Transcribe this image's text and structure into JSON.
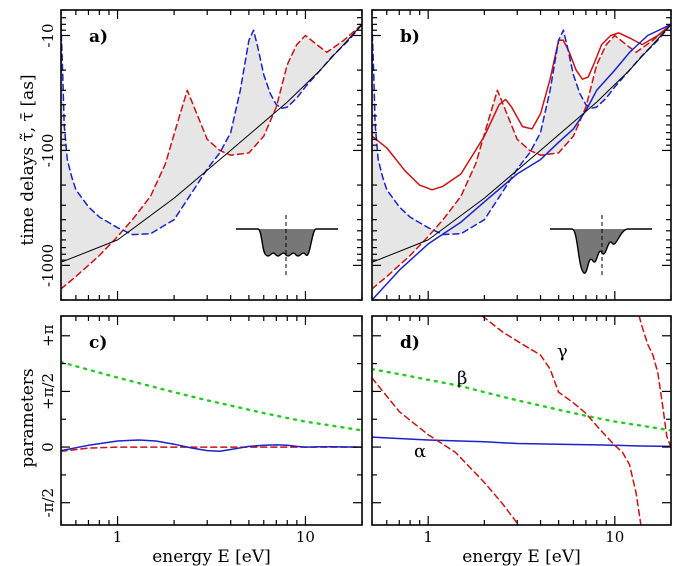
{
  "colors": {
    "red": "#cc1111",
    "blue": "#1a22cc",
    "green": "#22cc22",
    "black": "#000000",
    "shade": "#e6e6e6",
    "potential": "#777777"
  },
  "labels": {
    "y_top": "time delays τ̃, τ̄ [as]",
    "y_bottom": "parameters",
    "x": "energy E [eV]"
  },
  "chart_data": [
    {
      "panel": "a)",
      "type": "line",
      "xscale": "log",
      "xlim": [
        0.5,
        20
      ],
      "yscale": "log",
      "ylim": [
        -2000,
        -6
      ],
      "xticks": [
        "1",
        "10"
      ],
      "yticks": [
        "-10",
        "-100",
        "-1000"
      ],
      "series": [
        {
          "color": "red",
          "style": "dashed",
          "x": [
            0.5,
            0.6,
            0.8,
            1.0,
            1.2,
            1.5,
            1.8,
            2.1,
            2.35,
            2.6,
            3.0,
            3.5,
            4.0,
            5.0,
            6.0,
            7.0,
            8.0,
            9.0,
            10.0,
            11.5,
            13.0,
            16.0,
            20.0
          ],
          "y": [
            -1600,
            -1250,
            -820,
            -560,
            -400,
            -250,
            -130,
            -55,
            -30,
            -45,
            -80,
            -100,
            -110,
            -105,
            -75,
            -42,
            -18,
            -12,
            -10,
            -12,
            -14,
            -11,
            -8
          ]
        },
        {
          "color": "blue",
          "style": "dashed",
          "x": [
            0.5,
            0.51,
            0.52,
            0.54,
            0.57,
            0.6,
            0.7,
            0.8,
            1.0,
            1.2,
            1.5,
            2.0,
            2.5,
            3.0,
            3.5,
            4.0,
            4.5,
            5.0,
            5.3,
            5.6,
            6.0,
            6.5,
            7.0,
            7.5,
            8.0,
            9.0,
            10.0,
            12.0,
            14.0,
            17.0,
            20.0
          ],
          "y": [
            -8,
            -20,
            -60,
            -120,
            -170,
            -220,
            -310,
            -380,
            -470,
            -540,
            -530,
            -400,
            -230,
            -145,
            -105,
            -70,
            -30,
            -11,
            -9,
            -13,
            -22,
            -32,
            -40,
            -43,
            -42,
            -35,
            -28,
            -20,
            -15,
            -11,
            -8
          ]
        },
        {
          "color": "black",
          "style": "solid",
          "x": [
            0.5,
            1.0,
            2.0,
            4.0,
            8.0,
            12.0,
            20.0
          ],
          "y": [
            -940,
            -600,
            -260,
            -100,
            -38,
            -20,
            -8
          ]
        }
      ],
      "inset": "potential-well"
    },
    {
      "panel": "b)",
      "type": "line",
      "xscale": "log",
      "xlim": [
        0.5,
        20
      ],
      "yscale": "log",
      "ylim": [
        -2000,
        -6
      ],
      "xticks": [
        "1",
        "10"
      ],
      "yticks": [
        "-10",
        "-100",
        "-1000"
      ],
      "series": [
        {
          "color": "red",
          "style": "solid",
          "x": [
            0.5,
            0.6,
            0.75,
            0.9,
            1.05,
            1.2,
            1.5,
            2.0,
            2.4,
            2.6,
            2.8,
            3.2,
            3.6,
            4.0,
            4.5,
            5.0,
            5.3,
            5.7,
            6.2,
            6.7,
            7.2,
            7.8,
            8.5,
            9.5,
            10.5,
            12.0,
            14.0,
            17.0,
            20.0
          ],
          "y": [
            -75,
            -95,
            -150,
            -200,
            -220,
            -205,
            -160,
            -75,
            -40,
            -36,
            -42,
            -62,
            -65,
            -48,
            -24,
            -11,
            -11,
            -14,
            -20,
            -24,
            -23,
            -17,
            -12,
            -10,
            -9.5,
            -10.5,
            -12,
            -10,
            -8
          ]
        },
        {
          "color": "red",
          "style": "dashed",
          "x": [
            0.5,
            0.6,
            0.8,
            1.0,
            1.2,
            1.5,
            1.8,
            2.1,
            2.35,
            2.6,
            3.0,
            3.5,
            4.0,
            5.0,
            6.0,
            7.0,
            8.0,
            9.0,
            10.0,
            11.5,
            13.0,
            16.0,
            20.0
          ],
          "y": [
            -1600,
            -1250,
            -820,
            -560,
            -400,
            -250,
            -130,
            -55,
            -30,
            -45,
            -80,
            -100,
            -110,
            -105,
            -75,
            -42,
            -18,
            -12,
            -10,
            -12,
            -14,
            -11,
            -8
          ]
        },
        {
          "color": "blue",
          "style": "dashed",
          "x": [
            0.5,
            0.51,
            0.52,
            0.54,
            0.57,
            0.6,
            0.7,
            0.8,
            1.0,
            1.2,
            1.5,
            2.0,
            2.5,
            3.0,
            3.5,
            4.0,
            4.5,
            5.0,
            5.3,
            5.6,
            6.0,
            6.5,
            7.0,
            7.5,
            8.0,
            9.0,
            10.0,
            12.0,
            14.0,
            17.0,
            20.0
          ],
          "y": [
            -8,
            -20,
            -60,
            -120,
            -170,
            -220,
            -310,
            -380,
            -470,
            -540,
            -530,
            -400,
            -230,
            -145,
            -105,
            -70,
            -30,
            -11,
            -9,
            -13,
            -22,
            -32,
            -40,
            -43,
            -42,
            -35,
            -28,
            -20,
            -15,
            -11,
            -8
          ]
        },
        {
          "color": "blue",
          "style": "solid",
          "x": [
            0.5,
            0.7,
            1.0,
            1.5,
            2.0,
            3.0,
            4.0,
            5.0,
            6.0,
            7.0,
            8.0,
            10.0,
            12.0,
            15.0,
            20.0
          ],
          "y": [
            -2000,
            -1100,
            -650,
            -420,
            -280,
            -160,
            -120,
            -85,
            -65,
            -45,
            -30,
            -20,
            -14,
            -10,
            -8
          ]
        },
        {
          "color": "black",
          "style": "solid",
          "x": [
            0.5,
            1.0,
            2.0,
            4.0,
            8.0,
            12.0,
            20.0
          ],
          "y": [
            -940,
            -600,
            -260,
            -100,
            -38,
            -20,
            -8
          ]
        }
      ],
      "inset": "potential-well"
    },
    {
      "panel": "c)",
      "type": "line",
      "xscale": "log",
      "xlim": [
        0.5,
        20
      ],
      "ylim": [
        -2.2,
        3.7
      ],
      "xticks": [
        "1",
        "10"
      ],
      "yticks": [
        "-π/2",
        "0",
        "+π/2",
        "+π"
      ],
      "xlabel": "energy E [eV]",
      "series": [
        {
          "color": "green",
          "style": "dotted",
          "x": [
            0.5,
            0.8,
            1.0,
            1.5,
            2.0,
            3.0,
            4.0,
            6.0,
            8.0,
            10.0,
            14.0,
            20.0
          ],
          "y": [
            2.4,
            2.1,
            1.96,
            1.72,
            1.55,
            1.32,
            1.17,
            0.96,
            0.82,
            0.72,
            0.6,
            0.47
          ]
        },
        {
          "color": "red",
          "style": "dashed",
          "x": [
            0.5,
            0.7,
            1.0,
            20.0
          ],
          "y": [
            -0.12,
            -0.03,
            0.0,
            0.0
          ]
        },
        {
          "color": "blue",
          "style": "solid",
          "x": [
            0.5,
            0.7,
            1.0,
            1.3,
            1.6,
            2.0,
            2.5,
            3.0,
            3.5,
            4.0,
            5.0,
            6.0,
            7.0,
            8.0,
            9.0,
            10.0,
            12.0,
            14.0,
            20.0
          ],
          "y": [
            -0.1,
            0.05,
            0.17,
            0.2,
            0.17,
            0.08,
            -0.03,
            -0.1,
            -0.12,
            -0.07,
            0.02,
            0.05,
            0.06,
            0.05,
            0.02,
            0.0,
            0.01,
            0.01,
            0.0
          ]
        }
      ]
    },
    {
      "panel": "d)",
      "type": "line",
      "xscale": "log",
      "xlim": [
        0.5,
        20
      ],
      "ylim": [
        -2.2,
        3.7
      ],
      "xticks": [
        "1",
        "10"
      ],
      "yticks": [
        "-π/2",
        "0",
        "+π/2",
        "+π"
      ],
      "xlabel": "energy E [eV]",
      "annotations": [
        {
          "text": "β",
          "color": "green"
        },
        {
          "text": "γ",
          "color": "red"
        },
        {
          "text": "α",
          "color": "blue"
        }
      ],
      "series": [
        {
          "color": "green",
          "style": "dotted",
          "x": [
            0.5,
            0.8,
            1.0,
            1.5,
            2.0,
            3.0,
            4.0,
            6.0,
            8.0,
            10.0,
            14.0,
            20.0
          ],
          "y": [
            2.2,
            2.0,
            1.9,
            1.72,
            1.55,
            1.32,
            1.17,
            0.96,
            0.82,
            0.72,
            0.6,
            0.47
          ]
        },
        {
          "color": "blue",
          "style": "solid",
          "x": [
            0.5,
            1.0,
            2.0,
            3.0,
            5.0,
            8.0,
            10.0,
            14.0,
            20.0
          ],
          "y": [
            0.28,
            0.2,
            0.15,
            0.1,
            0.08,
            0.06,
            0.05,
            0.03,
            0.02
          ]
        },
        {
          "color": "red",
          "style": "dashed",
          "x": [
            0.5,
            0.7,
            1.0,
            1.4,
            2.0,
            2.5,
            3.05
          ],
          "y": [
            1.95,
            1.0,
            0.35,
            -0.15,
            -1.0,
            -1.6,
            -2.2
          ]
        },
        {
          "color": "red",
          "style": "dashed",
          "x": [
            1.95,
            2.5,
            3.2,
            4.0,
            4.5,
            5.0,
            6.0,
            7.0,
            8.0,
            9.0,
            10.0,
            11.0,
            12.0,
            13.0,
            13.8
          ],
          "y": [
            3.7,
            3.25,
            2.9,
            2.6,
            2.2,
            1.55,
            1.25,
            0.95,
            0.6,
            0.3,
            0.05,
            -0.15,
            -0.5,
            -1.3,
            -2.2
          ]
        },
        {
          "color": "red",
          "style": "dashed",
          "x": [
            13.5,
            14.0,
            15.0,
            16.0,
            17.0,
            18.0,
            19.0,
            20.0
          ],
          "y": [
            3.7,
            3.4,
            2.9,
            2.6,
            2.1,
            1.2,
            0.3,
            0.0
          ]
        }
      ]
    }
  ]
}
